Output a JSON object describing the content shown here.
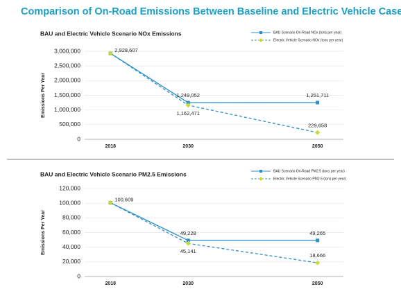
{
  "title": "Comparison of On-Road Emissions Between Baseline and Electric Vehicle Case",
  "chart_data": [
    {
      "type": "line",
      "title": "BAU and Electric Vehicle Scenario NOx Emissions",
      "y_label": "Emissions Per Year",
      "x": [
        2018,
        2030,
        2050
      ],
      "xlim": [
        2014,
        2054
      ],
      "xticks": [
        2018,
        2030,
        2050
      ],
      "ylim": [
        0,
        3000000
      ],
      "yticks": [
        0,
        {
          "value": 500000,
          "label": "500,000"
        },
        {
          "value": 1000000,
          "label": "1,000,000"
        },
        {
          "value": 1500000,
          "label": "1,500,000"
        },
        {
          "value": 2000000,
          "label": "2,000,000"
        },
        {
          "value": 2500000,
          "label": "2,500,000"
        },
        {
          "value": 3000000,
          "label": "3,000,000"
        }
      ],
      "grid": true,
      "series": [
        {
          "name": "BAU Scenario On-Road NOx (tons per year)",
          "color": "#2b8fc8",
          "marker": "square",
          "marker_color": "#2b8fc8",
          "dashed": false,
          "values": [
            2928607,
            1249052,
            1251711
          ],
          "value_labels": [
            "2,928,607",
            "1,249,052",
            "1,251,711"
          ]
        },
        {
          "name": "Electric Vehicle Scenario NOx (tons per year)",
          "color": "#2b8fc8",
          "marker": "diamond",
          "marker_color": "#c8dc32",
          "dashed": true,
          "values": [
            2928607,
            1162471,
            229658
          ],
          "value_labels": [
            null,
            "1,162,471",
            "229,658"
          ]
        }
      ]
    },
    {
      "type": "line",
      "title": "BAU and Electric Vehicle Scenario PM2.5 Emissions",
      "y_label": "Emissions Per Year",
      "x": [
        2018,
        2030,
        2050
      ],
      "xlim": [
        2014,
        2054
      ],
      "xticks": [
        2018,
        2030,
        2050
      ],
      "ylim": [
        0,
        120000
      ],
      "yticks": [
        0,
        {
          "value": 20000,
          "label": "20,000"
        },
        {
          "value": 40000,
          "label": "40,000"
        },
        {
          "value": 60000,
          "label": "60,000"
        },
        {
          "value": 80000,
          "label": "80,000"
        },
        {
          "value": 100000,
          "label": "100,000"
        },
        {
          "value": 120000,
          "label": "120,000"
        }
      ],
      "grid": true,
      "series": [
        {
          "name": "BAU Scenario On-Road PM2.5 (tons per year)",
          "color": "#2b8fc8",
          "marker": "square",
          "marker_color": "#2b8fc8",
          "dashed": false,
          "values": [
            100609,
            49228,
            49265
          ],
          "value_labels": [
            "100,609",
            "49,228",
            "49,265"
          ]
        },
        {
          "name": "Electric Vehicle Scenario PM2.5 (tons per year)",
          "color": "#2b8fc8",
          "marker": "diamond",
          "marker_color": "#c8dc32",
          "dashed": true,
          "values": [
            100609,
            45141,
            18666
          ],
          "value_labels": [
            null,
            "45,141",
            "18,666"
          ]
        }
      ]
    }
  ]
}
